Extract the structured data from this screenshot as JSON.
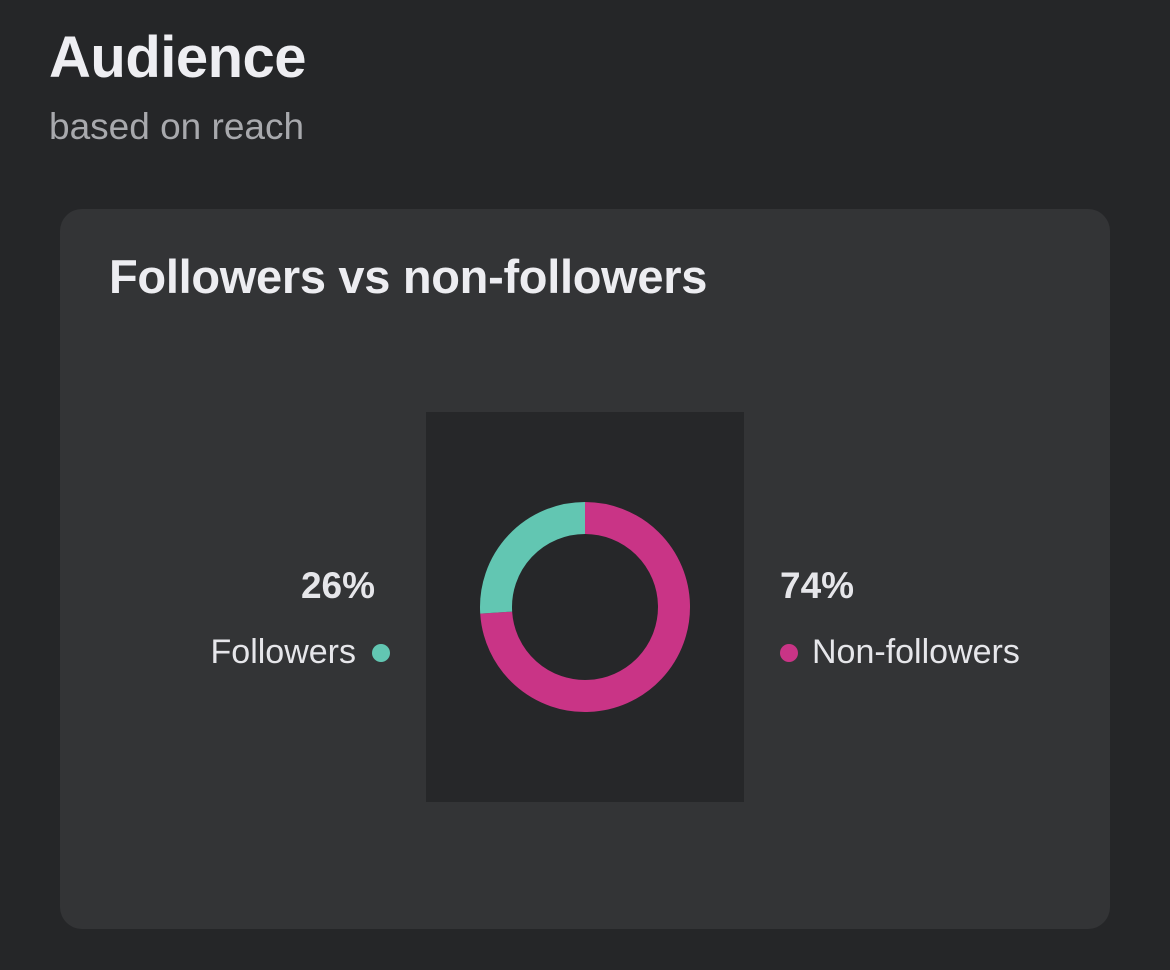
{
  "header": {
    "title": "Audience",
    "subtitle": "based on reach"
  },
  "card": {
    "title": "Followers vs non-followers"
  },
  "chart_data": {
    "type": "pie",
    "donut": true,
    "title": "Followers vs non-followers",
    "categories": [
      "Followers",
      "Non-followers"
    ],
    "values": [
      26,
      74
    ],
    "colors": [
      "#62c6b2",
      "#c93486"
    ],
    "value_labels": [
      "26%",
      "74%"
    ],
    "legend": "sides"
  }
}
